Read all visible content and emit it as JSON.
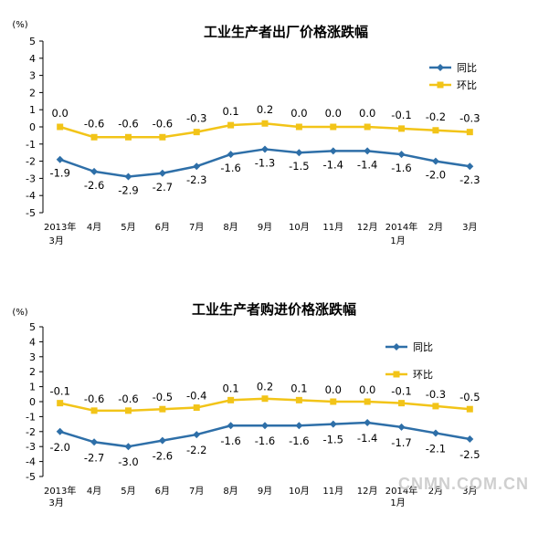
{
  "colors": {
    "yoy": "#2e6fa8",
    "mom": "#f2c418",
    "axis": "#000000"
  },
  "watermark": "CNMN.COM.CN",
  "chart_data": [
    {
      "type": "line",
      "title": "工业生产者出厂价格涨跌幅",
      "unit_label": "(%)",
      "ylim": [
        -5,
        5
      ],
      "yticks": [
        5,
        4,
        3,
        2,
        1,
        0,
        -1,
        -2,
        -3,
        -4,
        -5
      ],
      "categories": [
        "2013年|3月",
        "4月",
        "5月",
        "6月",
        "7月",
        "8月",
        "9月",
        "10月",
        "11月",
        "12月",
        "2014年|1月",
        "2月",
        "3月"
      ],
      "series": [
        {
          "name": "同比",
          "marker": "diamond",
          "color": "#2e6fa8",
          "values": [
            -1.9,
            -2.6,
            -2.9,
            -2.7,
            -2.3,
            -1.6,
            -1.3,
            -1.5,
            -1.4,
            -1.4,
            -1.6,
            -2.0,
            -2.3
          ],
          "labels": [
            "-1.9",
            "-2.6",
            "-2.9",
            "-2.7",
            "-2.3",
            "-1.6",
            "-1.3",
            "-1.5",
            "-1.4",
            "-1.4",
            "-1.6",
            "-2.0",
            "-2.3"
          ]
        },
        {
          "name": "环比",
          "marker": "square",
          "color": "#f2c418",
          "values": [
            0.0,
            -0.6,
            -0.6,
            -0.6,
            -0.3,
            0.1,
            0.2,
            0.0,
            0.0,
            0.0,
            -0.1,
            -0.2,
            -0.3
          ],
          "labels": [
            "0.0",
            "-0.6",
            "-0.6",
            "-0.6",
            "-0.3",
            "0.1",
            "0.2",
            "0.0",
            "0.0",
            "0.0",
            "-0.1",
            "-0.2",
            "-0.3"
          ]
        }
      ]
    },
    {
      "type": "line",
      "title": "工业生产者购进价格涨跌幅",
      "unit_label": "(%)",
      "ylim": [
        -5,
        5
      ],
      "yticks": [
        5,
        4,
        3,
        2,
        1,
        0,
        -1,
        -2,
        -3,
        -4,
        -5
      ],
      "categories": [
        "2013年|3月",
        "4月",
        "5月",
        "6月",
        "7月",
        "8月",
        "9月",
        "10月",
        "11月",
        "12月",
        "2014年|1月",
        "2月",
        "3月"
      ],
      "series": [
        {
          "name": "同比",
          "marker": "diamond",
          "color": "#2e6fa8",
          "values": [
            -2.0,
            -2.7,
            -3.0,
            -2.6,
            -2.2,
            -1.6,
            -1.6,
            -1.6,
            -1.5,
            -1.4,
            -1.7,
            -2.1,
            -2.5
          ],
          "labels": [
            "-2.0",
            "-2.7",
            "-3.0",
            "-2.6",
            "-2.2",
            "-1.6",
            "-1.6",
            "-1.6",
            "-1.5",
            "-1.4",
            "-1.7",
            "-2.1",
            "-2.5"
          ]
        },
        {
          "name": "环比",
          "marker": "square",
          "color": "#f2c418",
          "values": [
            -0.1,
            -0.6,
            -0.6,
            -0.5,
            -0.4,
            0.1,
            0.2,
            0.1,
            0.0,
            0.0,
            -0.1,
            -0.3,
            -0.5
          ],
          "labels": [
            "-0.1",
            "-0.6",
            "-0.6",
            "-0.5",
            "-0.4",
            "0.1",
            "0.2",
            "0.1",
            "0.0",
            "0.0",
            "-0.1",
            "-0.3",
            "-0.5"
          ]
        }
      ]
    }
  ]
}
